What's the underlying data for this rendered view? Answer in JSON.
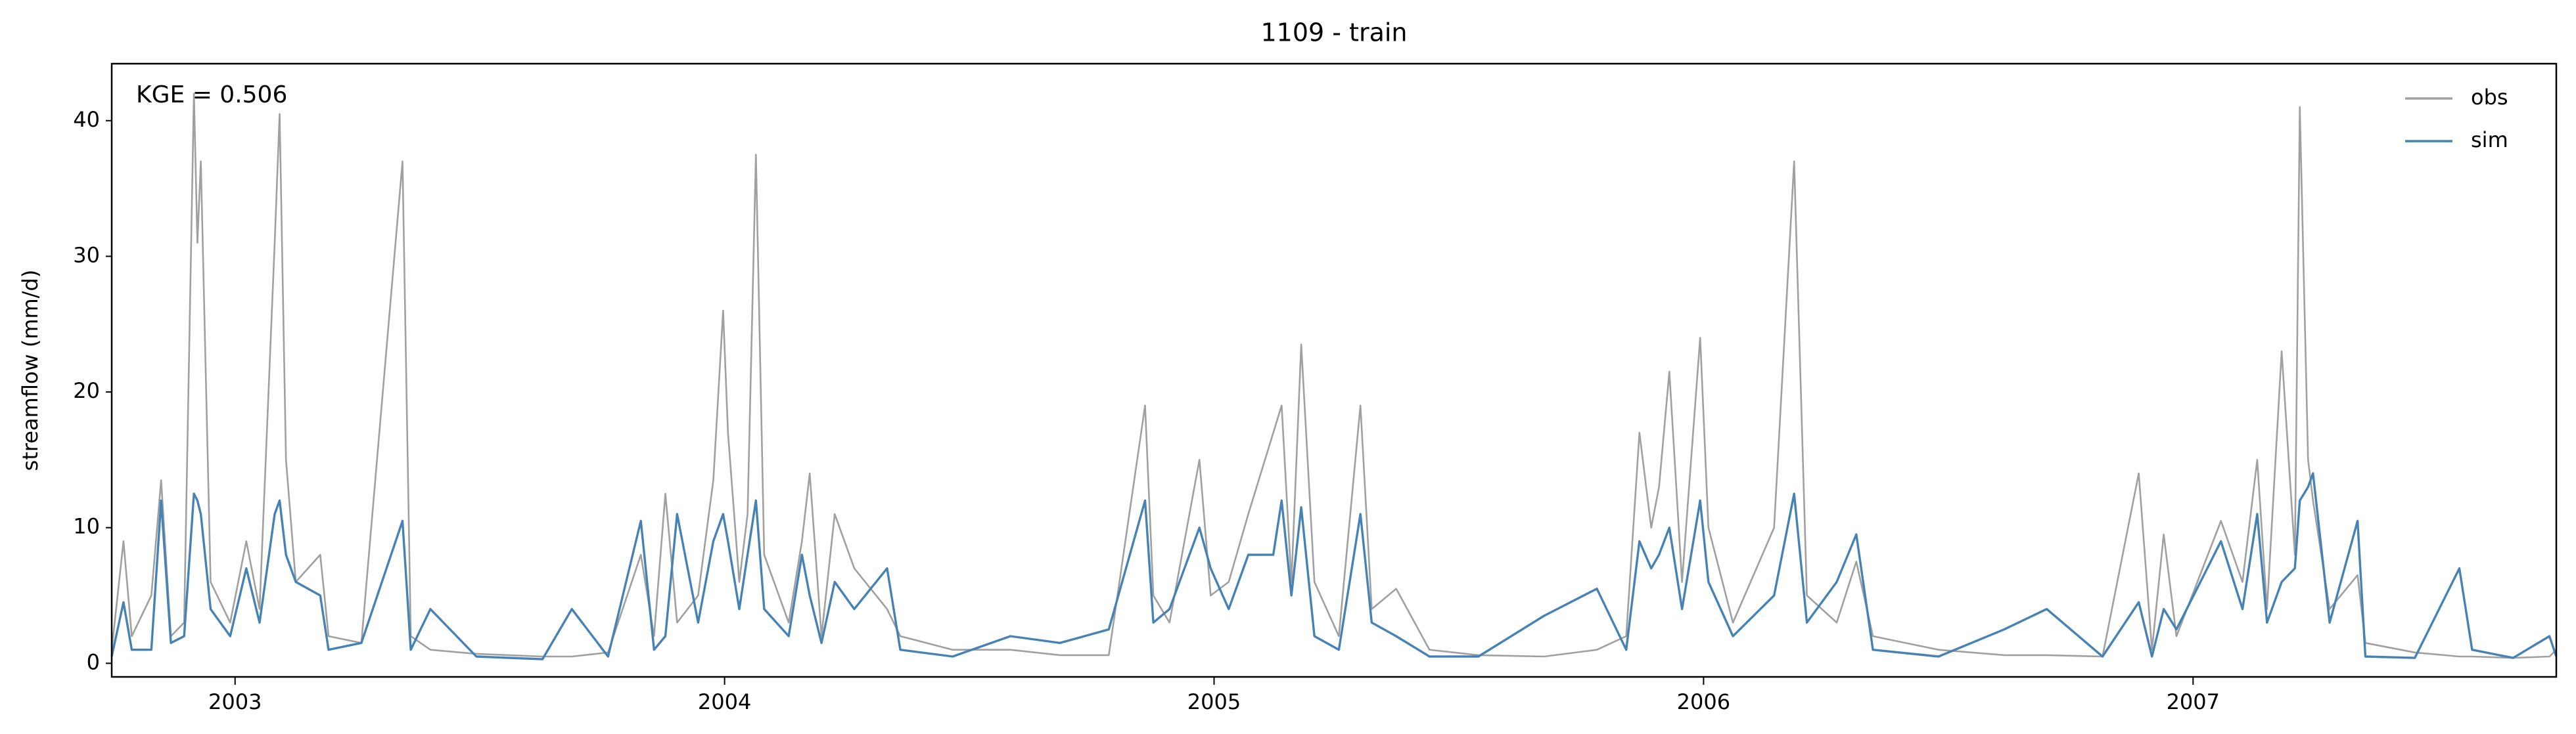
{
  "chart_data": {
    "type": "line",
    "title": "1109 - train",
    "ylabel": "streamflow (mm/d)",
    "annotation": "KGE = 0.506",
    "legend": "upper right",
    "xlim": [
      2002.748,
      2007.742
    ],
    "xticks": [
      2003,
      2004,
      2005,
      2006,
      2007
    ],
    "ylim": [
      -1,
      44.2
    ],
    "yticks": [
      0,
      10,
      20,
      30,
      40
    ],
    "x": [
      2002.748,
      2002.772,
      2002.789,
      2002.829,
      2002.849,
      2002.869,
      2002.896,
      2002.916,
      2002.923,
      2002.93,
      2002.95,
      2002.99,
      2003.023,
      2003.05,
      2003.081,
      2003.091,
      2003.104,
      2003.124,
      2003.174,
      2003.191,
      2003.258,
      2003.342,
      2003.359,
      2003.399,
      2003.493,
      2003.628,
      2003.688,
      2003.762,
      2003.829,
      2003.856,
      2003.879,
      2003.903,
      2003.946,
      2003.977,
      2003.997,
      2004.007,
      2004.03,
      2004.047,
      2004.064,
      2004.081,
      2004.131,
      2004.158,
      2004.174,
      2004.198,
      2004.225,
      2004.265,
      2004.332,
      2004.359,
      2004.466,
      2004.584,
      2004.685,
      2004.785,
      2004.859,
      2004.876,
      2004.909,
      2004.97,
      2004.993,
      2005.03,
      2005.07,
      2005.121,
      2005.138,
      2005.158,
      2005.178,
      2005.205,
      2005.255,
      2005.299,
      2005.322,
      2005.372,
      2005.44,
      2005.54,
      2005.674,
      2005.782,
      2005.842,
      2005.869,
      2005.893,
      2005.909,
      2005.93,
      2005.956,
      2005.993,
      2006.01,
      2006.06,
      2006.144,
      2006.185,
      2006.211,
      2006.272,
      2006.312,
      2006.346,
      2006.48,
      2006.614,
      2006.701,
      2006.815,
      2006.889,
      2006.916,
      2006.94,
      2006.966,
      2007.057,
      2007.101,
      2007.131,
      2007.151,
      2007.181,
      2007.208,
      2007.218,
      2007.235,
      2007.245,
      2007.279,
      2007.336,
      2007.352,
      2007.453,
      2007.544,
      2007.57,
      2007.654,
      2007.728,
      2007.742
    ],
    "series": [
      {
        "name": "obs",
        "color": "#a0a0a0",
        "values": [
          1,
          9,
          2,
          5,
          13.5,
          2,
          3,
          42,
          31,
          37,
          6,
          3,
          9,
          4,
          31,
          40.5,
          15,
          6,
          8,
          2,
          1.5,
          37,
          2,
          1,
          0.7,
          0.5,
          0.5,
          0.8,
          8,
          2,
          12.5,
          3,
          5,
          13.5,
          26,
          17,
          6,
          11,
          37.5,
          8,
          3,
          9,
          14,
          2,
          11,
          7,
          4,
          2,
          1,
          1,
          0.6,
          0.6,
          19,
          5,
          3,
          15,
          5,
          6,
          11,
          17,
          19,
          6,
          23.5,
          6,
          2,
          19,
          4,
          5.5,
          1,
          0.6,
          0.5,
          1,
          2,
          17,
          10,
          13,
          21.5,
          6,
          24,
          10,
          3,
          10,
          37,
          5,
          3,
          7.5,
          2,
          1,
          0.6,
          0.6,
          0.5,
          14,
          1,
          9.5,
          2,
          10.5,
          6,
          15,
          4,
          23,
          8,
          41,
          15,
          12,
          4,
          6.5,
          1.5,
          0.8,
          0.5,
          0.5,
          0.4,
          0.5,
          1
        ]
      },
      {
        "name": "sim",
        "color": "#4682b4",
        "values": [
          0.5,
          4.5,
          1,
          1,
          12,
          1.5,
          2,
          12.5,
          12,
          11,
          4,
          2,
          7,
          3,
          11,
          12,
          8,
          6,
          5,
          1,
          1.5,
          10.5,
          1,
          4,
          0.5,
          0.3,
          4,
          0.5,
          10.5,
          1,
          2,
          11,
          3,
          9,
          11,
          9,
          4,
          8,
          12,
          4,
          2,
          8,
          5,
          1.5,
          6,
          4,
          7,
          1,
          0.5,
          2,
          1.5,
          2.5,
          12,
          3,
          4,
          10,
          7,
          4,
          8,
          8,
          12,
          5,
          11.5,
          2,
          1,
          11,
          3,
          2,
          0.5,
          0.5,
          3.5,
          5.5,
          1,
          9,
          7,
          8,
          10,
          4,
          12,
          6,
          2,
          5,
          12.5,
          3,
          6,
          9.5,
          1,
          0.5,
          2.5,
          4,
          0.5,
          4.5,
          0.5,
          4,
          2.5,
          9,
          4,
          11,
          3,
          6,
          7,
          12,
          13,
          14,
          3,
          10.5,
          0.5,
          0.4,
          7,
          1,
          0.4,
          2,
          0.5
        ]
      }
    ]
  }
}
